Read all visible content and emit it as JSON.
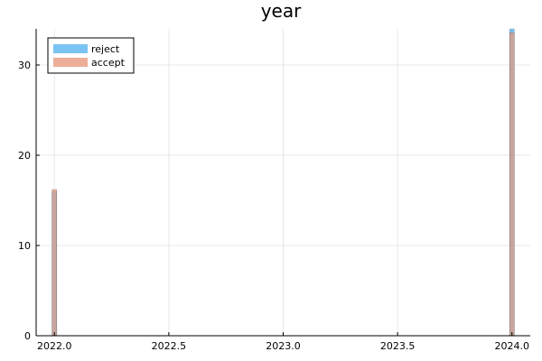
{
  "chart_data": {
    "type": "bar",
    "title": "year",
    "xlabel": "",
    "ylabel": "",
    "xlim": [
      1997.96,
      2024.12
    ],
    "ylim": [
      0,
      34
    ],
    "xticks": [
      2022.0,
      2022.5,
      2023.0,
      2023.5,
      2024.0
    ],
    "xtick_labels": [
      "2022.0",
      "2022.5",
      "2023.0",
      "2023.5",
      "2024.0"
    ],
    "yticks": [
      0,
      10,
      20,
      30
    ],
    "ytick_labels": [
      "0",
      "10",
      "20",
      "30"
    ],
    "grid": true,
    "legend_position": "top-left",
    "bin_width": 0.02,
    "series": [
      {
        "name": "reject",
        "color": "#5ab4f0",
        "bins": [
          {
            "x": 2022.0,
            "value": 16
          },
          {
            "x": 2024.0,
            "value": 34
          }
        ]
      },
      {
        "name": "accept",
        "color": "#e99a7e",
        "bins": [
          {
            "x": 2022.0,
            "value": 16.2
          },
          {
            "x": 2024.0,
            "value": 33.6
          }
        ]
      }
    ]
  }
}
